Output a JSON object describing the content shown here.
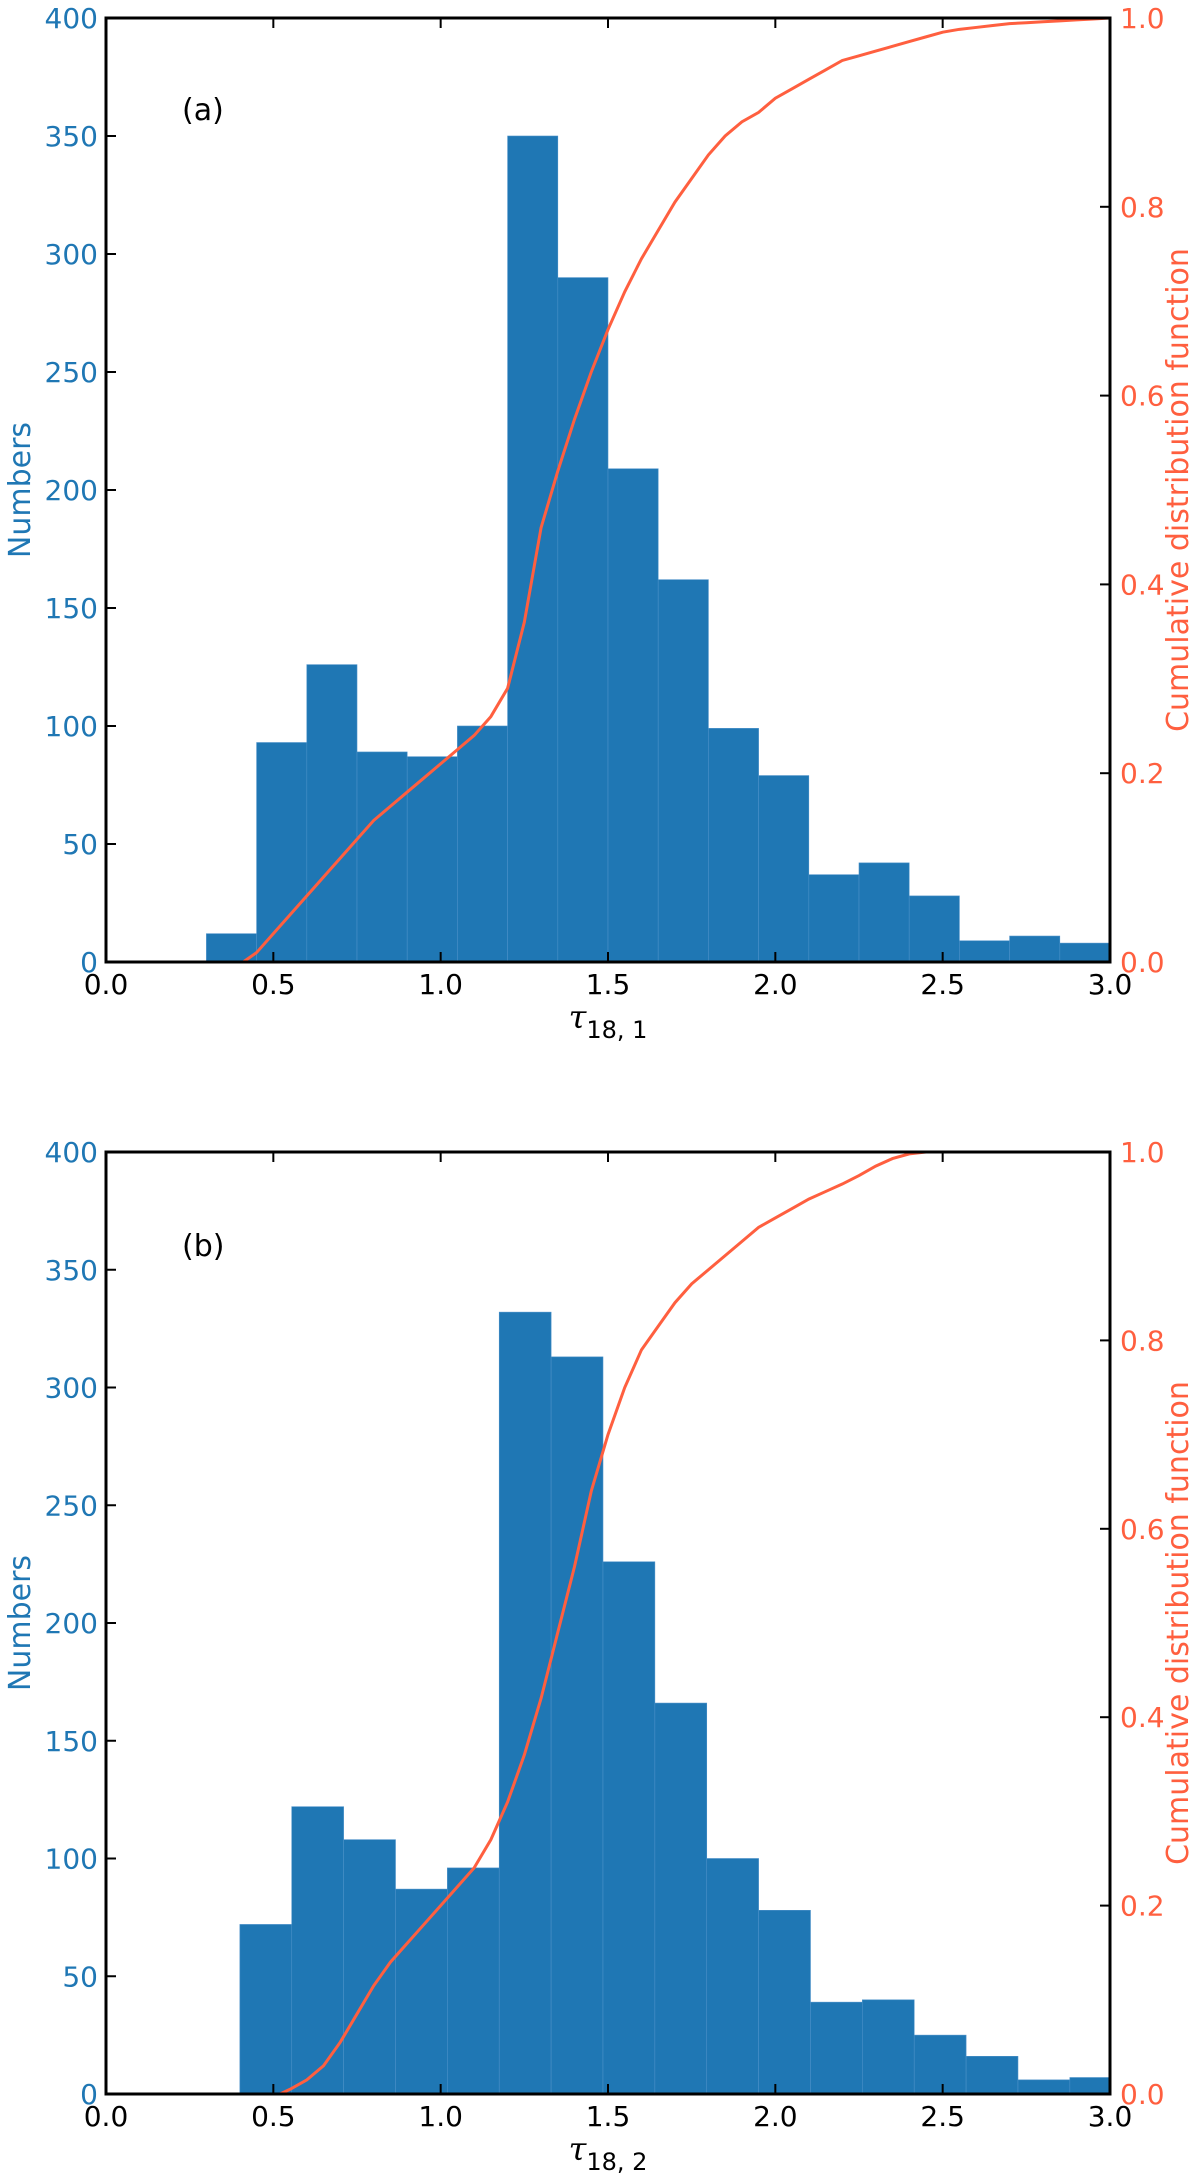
{
  "colors": {
    "bar": "#1f77b4",
    "bar_edge": "#4a90c8",
    "cdf": "#ff5f3f",
    "axis": "#000000"
  },
  "chart_data": [
    {
      "type": "bar",
      "panel_label": "(a)",
      "xlabel_symbol": "τ",
      "xlabel_sub": "18, 1",
      "ylabel_left": "Numbers",
      "ylabel_right": "Cumulative distribution function",
      "xlim": [
        0.0,
        3.0
      ],
      "ylim_left": [
        0,
        400
      ],
      "ylim_right": [
        0.0,
        1.0
      ],
      "x_ticks": [
        "0.0",
        "0.5",
        "1.0",
        "1.5",
        "2.0",
        "2.5",
        "3.0"
      ],
      "y_ticks_left": [
        "0",
        "50",
        "100",
        "150",
        "200",
        "250",
        "300",
        "350",
        "400"
      ],
      "y_ticks_right": [
        "0.0",
        "0.2",
        "0.4",
        "0.6",
        "0.8",
        "1.0"
      ],
      "bin_edges": [
        0.3,
        0.45,
        0.6,
        0.75,
        0.9,
        1.05,
        1.2,
        1.35,
        1.5,
        1.65,
        1.8,
        1.95,
        2.1,
        2.25,
        2.4,
        2.55,
        2.7,
        2.85,
        3.0
      ],
      "values": [
        12,
        93,
        126,
        89,
        87,
        100,
        350,
        290,
        209,
        162,
        99,
        79,
        37,
        42,
        28,
        9,
        11,
        8
      ],
      "cdf": {
        "name": "Cumulative distribution function",
        "x": [
          0.41,
          0.45,
          0.5,
          0.55,
          0.6,
          0.65,
          0.7,
          0.75,
          0.8,
          0.85,
          0.9,
          0.95,
          1.0,
          1.05,
          1.1,
          1.15,
          1.2,
          1.25,
          1.3,
          1.35,
          1.4,
          1.45,
          1.5,
          1.55,
          1.6,
          1.65,
          1.7,
          1.75,
          1.8,
          1.85,
          1.9,
          1.95,
          2.0,
          2.05,
          2.1,
          2.15,
          2.2,
          2.25,
          2.3,
          2.35,
          2.4,
          2.45,
          2.5,
          2.55,
          2.6,
          2.65,
          2.7,
          2.75,
          2.8,
          2.85,
          2.9,
          2.95,
          3.0
        ],
        "y": [
          0.0,
          0.01,
          0.03,
          0.05,
          0.07,
          0.09,
          0.11,
          0.13,
          0.15,
          0.165,
          0.18,
          0.195,
          0.21,
          0.225,
          0.24,
          0.26,
          0.29,
          0.36,
          0.46,
          0.52,
          0.575,
          0.625,
          0.67,
          0.71,
          0.745,
          0.775,
          0.805,
          0.83,
          0.855,
          0.875,
          0.89,
          0.9,
          0.915,
          0.925,
          0.935,
          0.945,
          0.955,
          0.96,
          0.965,
          0.97,
          0.975,
          0.98,
          0.985,
          0.988,
          0.99,
          0.992,
          0.994,
          0.995,
          0.996,
          0.997,
          0.998,
          0.999,
          1.0
        ]
      }
    },
    {
      "type": "bar",
      "panel_label": "(b)",
      "xlabel_symbol": "τ",
      "xlabel_sub": "18, 2",
      "ylabel_left": "Numbers",
      "ylabel_right": "Cumulative distribution function",
      "xlim": [
        0.0,
        3.0
      ],
      "ylim_left": [
        0,
        400
      ],
      "ylim_right": [
        0.0,
        1.0
      ],
      "x_ticks": [
        "0.0",
        "0.5",
        "1.0",
        "1.5",
        "2.0",
        "2.5",
        "3.0"
      ],
      "y_ticks_left": [
        "0",
        "50",
        "100",
        "150",
        "200",
        "250",
        "300",
        "350",
        "400"
      ],
      "y_ticks_right": [
        "0.0",
        "0.2",
        "0.4",
        "0.6",
        "0.8",
        "1.0"
      ],
      "bin_edges": [
        0.4,
        0.555,
        0.71,
        0.865,
        1.02,
        1.175,
        1.33,
        1.485,
        1.64,
        1.795,
        1.95,
        2.105,
        2.26,
        2.415,
        2.57,
        2.725,
        2.88,
        3.035
      ],
      "values": [
        72,
        122,
        108,
        87,
        96,
        332,
        313,
        226,
        166,
        100,
        78,
        39,
        40,
        25,
        16,
        6,
        7
      ],
      "cdf": {
        "name": "Cumulative distribution function",
        "x": [
          0.52,
          0.55,
          0.6,
          0.65,
          0.7,
          0.75,
          0.8,
          0.85,
          0.9,
          0.95,
          1.0,
          1.05,
          1.1,
          1.15,
          1.2,
          1.25,
          1.3,
          1.35,
          1.4,
          1.45,
          1.5,
          1.55,
          1.6,
          1.65,
          1.7,
          1.75,
          1.8,
          1.85,
          1.9,
          1.95,
          2.0,
          2.05,
          2.1,
          2.15,
          2.2,
          2.25,
          2.3,
          2.35,
          2.4,
          2.45,
          2.5,
          2.55,
          2.6,
          2.7,
          2.8,
          2.9,
          3.0
        ],
        "y": [
          0.0,
          0.005,
          0.015,
          0.03,
          0.055,
          0.085,
          0.115,
          0.14,
          0.16,
          0.18,
          0.2,
          0.22,
          0.24,
          0.27,
          0.31,
          0.36,
          0.42,
          0.49,
          0.56,
          0.64,
          0.7,
          0.75,
          0.79,
          0.815,
          0.84,
          0.86,
          0.875,
          0.89,
          0.905,
          0.92,
          0.93,
          0.94,
          0.95,
          0.958,
          0.966,
          0.975,
          0.985,
          0.993,
          0.998,
          1.0,
          1.0,
          1.0,
          1.0,
          1.0,
          1.0,
          1.0,
          1.0
        ]
      }
    }
  ]
}
